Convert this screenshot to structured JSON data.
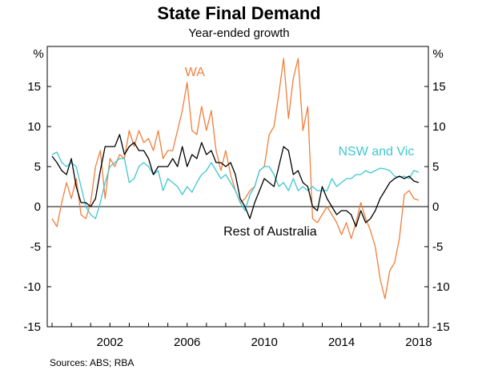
{
  "chart_data": {
    "type": "line",
    "title": "State Final Demand",
    "subtitle": "Year-ended growth",
    "unit_left": "%",
    "unit_right": "%",
    "source": "Sources:   ABS; RBA",
    "ylim": [
      -15,
      20
    ],
    "yticks": [
      -15,
      -10,
      -5,
      0,
      5,
      10,
      15
    ],
    "xlim": [
      1998.75,
      2018.5
    ],
    "xticks": [
      2002,
      2006,
      2010,
      2014,
      2018
    ],
    "grid": false,
    "series": [
      {
        "name": "WA",
        "color": "#f07f3c",
        "label_pos": [
          2006.4,
          16.3
        ],
        "x": [
          1999.0,
          1999.25,
          1999.5,
          1999.75,
          2000.0,
          2000.25,
          2000.5,
          2000.75,
          2001.0,
          2001.25,
          2001.5,
          2001.75,
          2002.0,
          2002.25,
          2002.5,
          2002.75,
          2003.0,
          2003.25,
          2003.5,
          2003.75,
          2004.0,
          2004.25,
          2004.5,
          2004.75,
          2005.0,
          2005.25,
          2005.5,
          2005.75,
          2006.0,
          2006.25,
          2006.5,
          2006.75,
          2007.0,
          2007.25,
          2007.5,
          2007.75,
          2008.0,
          2008.25,
          2008.5,
          2008.75,
          2009.0,
          2009.25,
          2009.5,
          2009.75,
          2010.0,
          2010.25,
          2010.5,
          2010.75,
          2011.0,
          2011.25,
          2011.5,
          2011.75,
          2012.0,
          2012.25,
          2012.5,
          2012.75,
          2013.0,
          2013.25,
          2013.5,
          2013.75,
          2014.0,
          2014.25,
          2014.5,
          2014.75,
          2015.0,
          2015.25,
          2015.5,
          2015.75,
          2016.0,
          2016.25,
          2016.5,
          2016.75,
          2017.0,
          2017.25,
          2017.5,
          2017.75,
          2018.0
        ],
        "values": [
          -1.5,
          -2.5,
          0.5,
          3.0,
          1.0,
          3.5,
          -1.0,
          -1.5,
          0.5,
          5.0,
          7.0,
          1.0,
          6.0,
          5.0,
          6.5,
          6.0,
          9.5,
          7.5,
          9.5,
          8.0,
          8.5,
          7.0,
          9.5,
          6.0,
          7.0,
          7.0,
          9.5,
          12.0,
          15.5,
          9.5,
          9.0,
          12.5,
          9.5,
          12.0,
          7.0,
          4.5,
          7.0,
          4.0,
          2.0,
          0.5,
          1.0,
          2.0,
          2.5,
          4.5,
          5.0,
          9.0,
          10.0,
          14.0,
          18.5,
          11.0,
          16.0,
          18.5,
          9.5,
          12.5,
          -1.5,
          -2.0,
          -1.0,
          0.0,
          -1.0,
          -2.0,
          -3.5,
          -2.0,
          -4.0,
          -2.0,
          0.5,
          -1.5,
          -3.0,
          -5.0,
          -9.0,
          -11.5,
          -8.0,
          -7.0,
          -4.0,
          1.5,
          2.0,
          1.0,
          0.8
        ]
      },
      {
        "name": "NSW and Vic",
        "color": "#3ec7d1",
        "label_pos": [
          2015.8,
          6.4
        ],
        "x": [
          1999.0,
          1999.25,
          1999.5,
          1999.75,
          2000.0,
          2000.25,
          2000.5,
          2000.75,
          2001.0,
          2001.25,
          2001.5,
          2001.75,
          2002.0,
          2002.25,
          2002.5,
          2002.75,
          2003.0,
          2003.25,
          2003.5,
          2003.75,
          2004.0,
          2004.25,
          2004.5,
          2004.75,
          2005.0,
          2005.25,
          2005.5,
          2005.75,
          2006.0,
          2006.25,
          2006.5,
          2006.75,
          2007.0,
          2007.25,
          2007.5,
          2007.75,
          2008.0,
          2008.25,
          2008.5,
          2008.75,
          2009.0,
          2009.25,
          2009.5,
          2009.75,
          2010.0,
          2010.25,
          2010.5,
          2010.75,
          2011.0,
          2011.25,
          2011.5,
          2011.75,
          2012.0,
          2012.25,
          2012.5,
          2012.75,
          2013.0,
          2013.25,
          2013.5,
          2013.75,
          2014.0,
          2014.25,
          2014.5,
          2014.75,
          2015.0,
          2015.25,
          2015.5,
          2015.75,
          2016.0,
          2016.25,
          2016.5,
          2016.75,
          2017.0,
          2017.25,
          2017.5,
          2017.75,
          2018.0
        ],
        "values": [
          6.5,
          6.8,
          5.5,
          5.0,
          5.5,
          5.0,
          2.5,
          0.0,
          -1.0,
          -1.5,
          0.5,
          3.0,
          5.0,
          5.5,
          6.0,
          6.0,
          3.0,
          3.5,
          5.0,
          5.5,
          5.0,
          4.0,
          4.5,
          2.0,
          3.5,
          3.0,
          2.5,
          1.5,
          2.5,
          1.8,
          3.0,
          4.0,
          4.5,
          5.5,
          4.5,
          3.5,
          4.0,
          3.0,
          2.0,
          0.5,
          -0.5,
          1.5,
          2.5,
          4.5,
          5.0,
          5.0,
          4.0,
          2.5,
          3.0,
          2.0,
          3.5,
          2.0,
          2.5,
          2.0,
          2.5,
          2.0,
          2.0,
          2.0,
          3.5,
          2.5,
          3.0,
          3.5,
          3.5,
          4.0,
          4.0,
          4.5,
          4.2,
          4.5,
          4.8,
          4.7,
          4.5,
          3.8,
          3.7,
          3.8,
          3.5,
          4.5,
          4.3
        ]
      },
      {
        "name": "Rest of Australia",
        "color": "#000000",
        "label_pos": [
          2010.3,
          -3.6
        ],
        "x": [
          1999.0,
          1999.25,
          1999.5,
          1999.75,
          2000.0,
          2000.25,
          2000.5,
          2000.75,
          2001.0,
          2001.25,
          2001.5,
          2001.75,
          2002.0,
          2002.25,
          2002.5,
          2002.75,
          2003.0,
          2003.25,
          2003.5,
          2003.75,
          2004.0,
          2004.25,
          2004.5,
          2004.75,
          2005.0,
          2005.25,
          2005.5,
          2005.75,
          2006.0,
          2006.25,
          2006.5,
          2006.75,
          2007.0,
          2007.25,
          2007.5,
          2007.75,
          2008.0,
          2008.25,
          2008.5,
          2008.75,
          2009.0,
          2009.25,
          2009.5,
          2009.75,
          2010.0,
          2010.25,
          2010.5,
          2010.75,
          2011.0,
          2011.25,
          2011.5,
          2011.75,
          2012.0,
          2012.25,
          2012.5,
          2012.75,
          2013.0,
          2013.25,
          2013.5,
          2013.75,
          2014.0,
          2014.25,
          2014.5,
          2014.75,
          2015.0,
          2015.25,
          2015.5,
          2015.75,
          2016.0,
          2016.25,
          2016.5,
          2016.75,
          2017.0,
          2017.25,
          2017.5,
          2017.75,
          2018.0
        ],
        "values": [
          6.3,
          5.5,
          4.5,
          4.0,
          6.0,
          2.5,
          0.5,
          0.5,
          0.0,
          1.0,
          4.5,
          7.5,
          7.5,
          7.5,
          9.0,
          6.5,
          7.5,
          8.0,
          7.0,
          7.0,
          6.0,
          4.0,
          5.0,
          5.0,
          5.0,
          6.0,
          5.0,
          7.5,
          5.0,
          6.5,
          6.0,
          8.0,
          6.5,
          7.0,
          5.5,
          5.5,
          5.0,
          5.5,
          4.0,
          1.0,
          0.0,
          -1.5,
          0.5,
          2.0,
          3.5,
          3.0,
          2.5,
          5.0,
          7.5,
          7.0,
          4.0,
          4.5,
          3.0,
          2.5,
          0.0,
          -0.5,
          2.5,
          1.0,
          0.0,
          -1.0,
          -0.5,
          -0.5,
          -1.0,
          -2.5,
          -0.5,
          -2.0,
          -1.5,
          -0.5,
          1.0,
          2.0,
          3.0,
          3.5,
          3.8,
          3.5,
          3.8,
          3.2,
          3.0
        ]
      }
    ]
  }
}
